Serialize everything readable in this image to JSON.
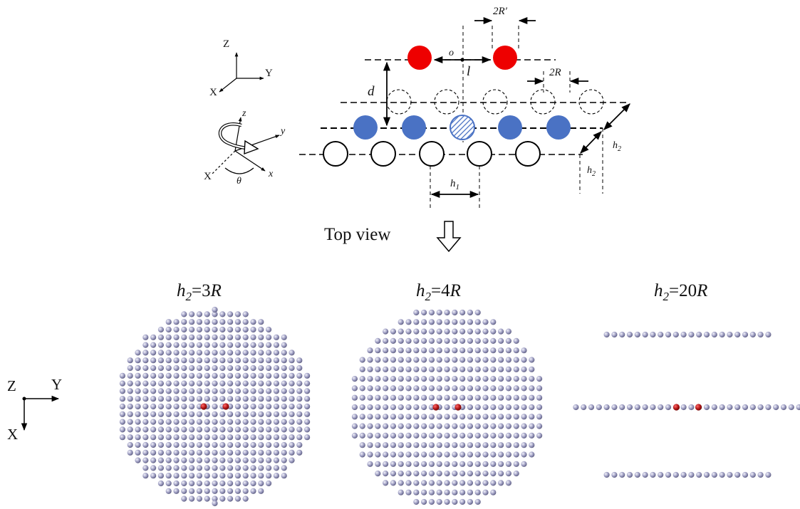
{
  "axes3d": {
    "z": "Z",
    "y": "Y",
    "x": "X"
  },
  "rotation_axes": {
    "z": "z",
    "y": "y",
    "x": "x",
    "big_x": "X",
    "angle": "θ"
  },
  "side_view_labels": {
    "two_r_prime": "2R′",
    "o": "o",
    "l": "l",
    "d": "d",
    "two_r": "2R",
    "h2": "h",
    "h2_sub": "2",
    "h1": "h",
    "h1_sub": "1"
  },
  "top_view_label": "Top view",
  "panels": [
    {
      "h": "h",
      "sub": "2",
      "eq": "=3",
      "r": "R"
    },
    {
      "h": "h",
      "sub": "2",
      "eq": "=4",
      "r": "R"
    },
    {
      "h": "h",
      "sub": "2",
      "eq": "=20",
      "r": "R"
    }
  ],
  "axes2d": {
    "z": "Z",
    "y": "Y",
    "x": "X"
  },
  "colors": {
    "top_particle": "#ee0000",
    "mid_particle": "#4a72c4",
    "lattice_dot": "#9b9bbd",
    "probe_dot": "#b11818",
    "line": "#000000"
  }
}
